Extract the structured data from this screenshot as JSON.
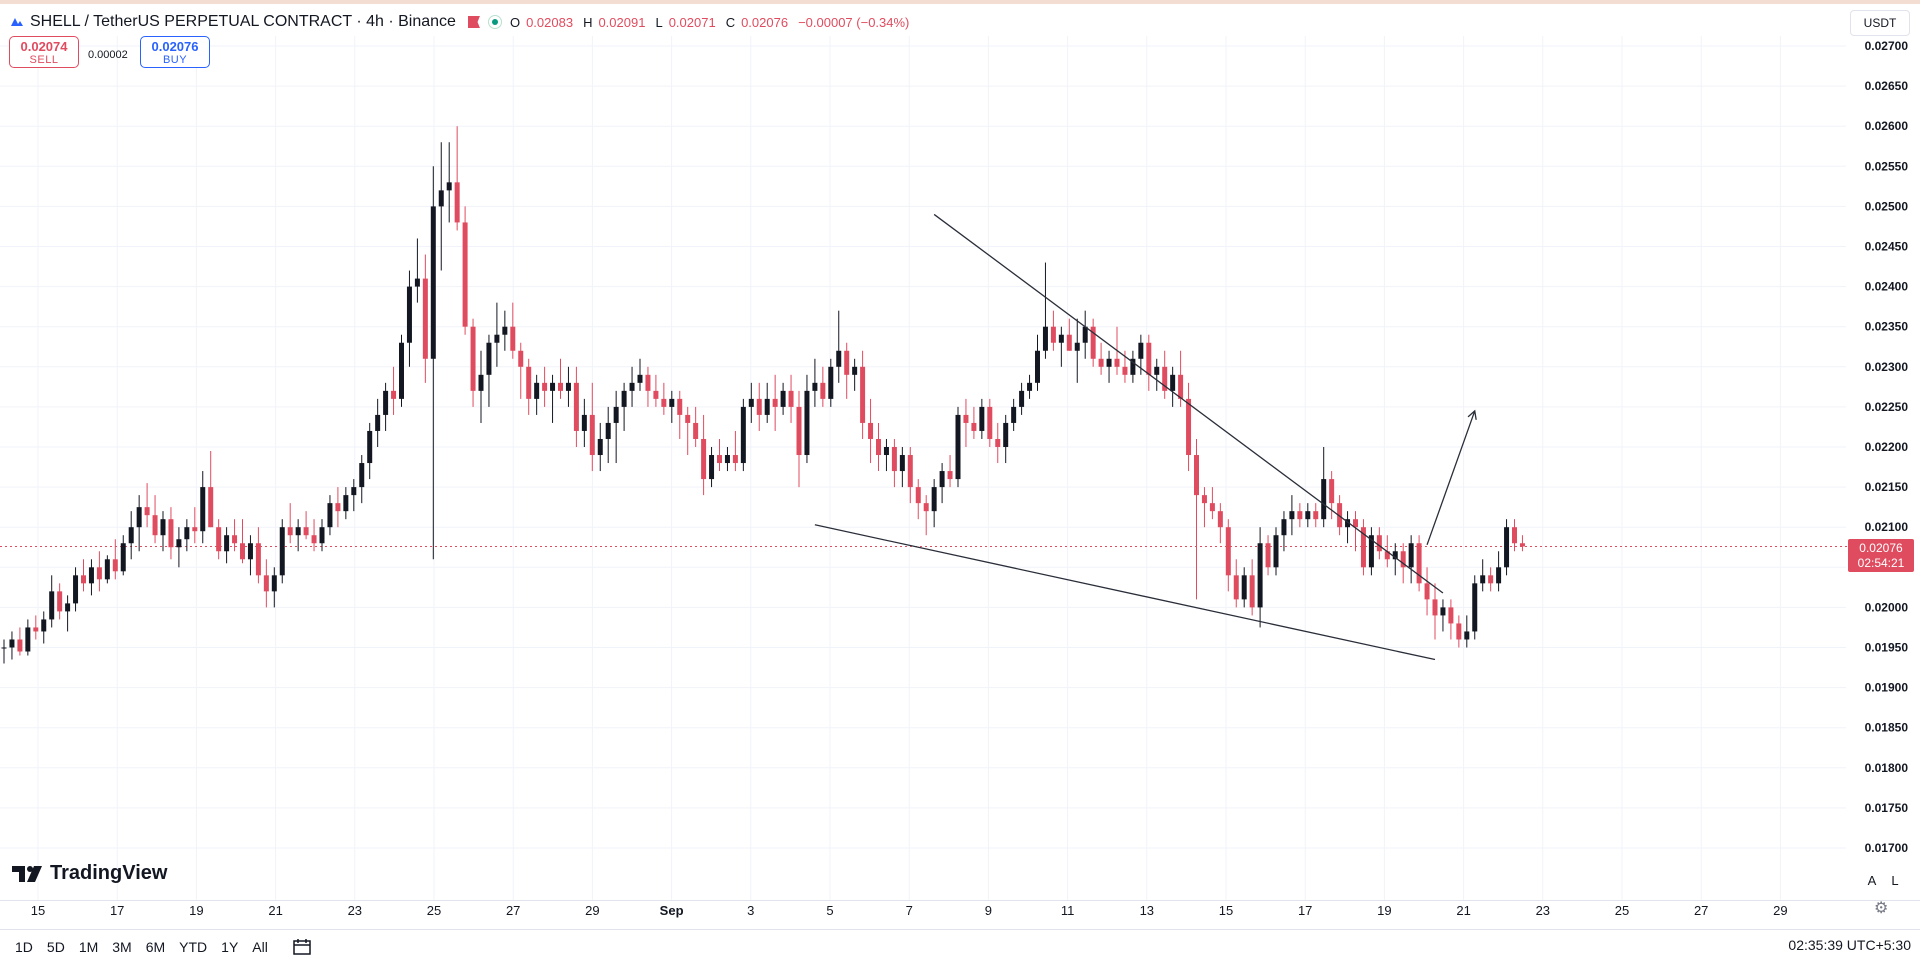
{
  "header": {
    "symbol_title": "SHELL / TetherUS PERPETUAL CONTRACT · 4h · Binance",
    "o_label": "O",
    "o_value": "0.02083",
    "h_label": "H",
    "h_value": "0.02091",
    "l_label": "L",
    "l_value": "0.02071",
    "c_label": "C",
    "c_value": "0.02076",
    "change": "−0.00007 (−0.34%)"
  },
  "trade": {
    "sell_price": "0.02074",
    "sell_label": "SELL",
    "buy_price": "0.02076",
    "buy_label": "BUY",
    "spread": "0.00002"
  },
  "currency": "USDT",
  "last_price": {
    "price": "0.02076",
    "countdown": "02:54:21"
  },
  "logo_text": "TradingView",
  "scale_buttons": {
    "auto": "A",
    "log": "L"
  },
  "range_buttons": [
    "1D",
    "5D",
    "1M",
    "3M",
    "6M",
    "YTD",
    "1Y",
    "All"
  ],
  "clock": "02:35:39 UTC+5:30",
  "icons": {
    "calendar": "calendar-range-icon",
    "settings": "gear-icon",
    "flag": "flag-icon",
    "status": "market-open-dot-icon"
  },
  "colors": {
    "up": "#131722",
    "down": "#e04c5f",
    "grid": "#f0f3fa",
    "trendline": "#2a2e39",
    "price_line": "#e04c5f"
  },
  "chart_data": {
    "type": "candlestick",
    "timeframe": "4h",
    "ylim": [
      0.0169,
      0.0271
    ],
    "y_ticks": [
      "0.01700",
      "0.01750",
      "0.01800",
      "0.01850",
      "0.01900",
      "0.01950",
      "0.02000",
      "0.02050",
      "0.02100",
      "0.02150",
      "0.02200",
      "0.02250",
      "0.02300",
      "0.02350",
      "0.02400",
      "0.02450",
      "0.02500",
      "0.02550",
      "0.02600",
      "0.02650",
      "0.02700"
    ],
    "x_ticks": [
      "15",
      "17",
      "19",
      "21",
      "23",
      "25",
      "27",
      "29",
      "Sep",
      "3",
      "5",
      "7",
      "9",
      "11",
      "13",
      "15",
      "17",
      "19",
      "21",
      "23",
      "25",
      "27",
      "29"
    ],
    "current_price": 0.02076,
    "candles": [
      [
        0.0195,
        0.0196,
        0.0193,
        0.0195
      ],
      [
        0.0195,
        0.0197,
        0.01935,
        0.0196
      ],
      [
        0.0196,
        0.01975,
        0.0194,
        0.01945
      ],
      [
        0.01945,
        0.01985,
        0.0194,
        0.01975
      ],
      [
        0.01975,
        0.0199,
        0.0196,
        0.0197
      ],
      [
        0.0197,
        0.01995,
        0.01955,
        0.01985
      ],
      [
        0.01985,
        0.0204,
        0.01975,
        0.0202
      ],
      [
        0.0202,
        0.0203,
        0.01985,
        0.01995
      ],
      [
        0.01995,
        0.02015,
        0.0197,
        0.02005
      ],
      [
        0.02005,
        0.0205,
        0.01995,
        0.0204
      ],
      [
        0.0204,
        0.0206,
        0.0202,
        0.0203
      ],
      [
        0.0203,
        0.0206,
        0.02015,
        0.0205
      ],
      [
        0.0205,
        0.0207,
        0.0202,
        0.02035
      ],
      [
        0.02035,
        0.02065,
        0.0203,
        0.0206
      ],
      [
        0.0206,
        0.02085,
        0.02035,
        0.02045
      ],
      [
        0.02045,
        0.0209,
        0.0204,
        0.0208
      ],
      [
        0.0208,
        0.0212,
        0.0206,
        0.021
      ],
      [
        0.021,
        0.0214,
        0.0207,
        0.02125
      ],
      [
        0.02125,
        0.02155,
        0.021,
        0.02115
      ],
      [
        0.02115,
        0.0214,
        0.0208,
        0.0209
      ],
      [
        0.0209,
        0.0212,
        0.0207,
        0.0211
      ],
      [
        0.0211,
        0.02125,
        0.0206,
        0.02075
      ],
      [
        0.02075,
        0.021,
        0.0205,
        0.02085
      ],
      [
        0.02085,
        0.0211,
        0.0207,
        0.021
      ],
      [
        0.021,
        0.02125,
        0.0208,
        0.02095
      ],
      [
        0.02095,
        0.0217,
        0.0208,
        0.0215
      ],
      [
        0.0215,
        0.02195,
        0.021,
        0.021
      ],
      [
        0.021,
        0.0211,
        0.0206,
        0.0207
      ],
      [
        0.0207,
        0.021,
        0.02055,
        0.0209
      ],
      [
        0.0209,
        0.0211,
        0.0207,
        0.0208
      ],
      [
        0.0208,
        0.0211,
        0.02055,
        0.0206
      ],
      [
        0.0206,
        0.0209,
        0.0204,
        0.0208
      ],
      [
        0.0208,
        0.021,
        0.0203,
        0.0204
      ],
      [
        0.0204,
        0.0206,
        0.02,
        0.0202
      ],
      [
        0.0202,
        0.0205,
        0.02,
        0.0204
      ],
      [
        0.0204,
        0.0211,
        0.0203,
        0.021
      ],
      [
        0.021,
        0.0213,
        0.0208,
        0.0209
      ],
      [
        0.0209,
        0.0211,
        0.0207,
        0.021
      ],
      [
        0.021,
        0.0212,
        0.02085,
        0.0209
      ],
      [
        0.0209,
        0.0211,
        0.0207,
        0.0208
      ],
      [
        0.0208,
        0.0211,
        0.0207,
        0.021
      ],
      [
        0.021,
        0.0214,
        0.0209,
        0.0213
      ],
      [
        0.0213,
        0.0215,
        0.021,
        0.0212
      ],
      [
        0.0212,
        0.0215,
        0.0211,
        0.0214
      ],
      [
        0.0214,
        0.0216,
        0.0212,
        0.0215
      ],
      [
        0.0215,
        0.0219,
        0.0213,
        0.0218
      ],
      [
        0.0218,
        0.0223,
        0.0216,
        0.0222
      ],
      [
        0.0222,
        0.0226,
        0.022,
        0.0224
      ],
      [
        0.0224,
        0.0228,
        0.0222,
        0.0227
      ],
      [
        0.0227,
        0.023,
        0.0224,
        0.0226
      ],
      [
        0.0226,
        0.0234,
        0.0225,
        0.0233
      ],
      [
        0.0233,
        0.0242,
        0.023,
        0.024
      ],
      [
        0.024,
        0.0246,
        0.0238,
        0.0241
      ],
      [
        0.0241,
        0.0244,
        0.0228,
        0.0231
      ],
      [
        0.0231,
        0.0255,
        0.0206,
        0.025
      ],
      [
        0.025,
        0.0258,
        0.0242,
        0.0252
      ],
      [
        0.0252,
        0.0258,
        0.0248,
        0.0253
      ],
      [
        0.0253,
        0.026,
        0.0247,
        0.0248
      ],
      [
        0.0248,
        0.025,
        0.0234,
        0.0235
      ],
      [
        0.0235,
        0.0236,
        0.0225,
        0.0227
      ],
      [
        0.0227,
        0.0232,
        0.0223,
        0.0229
      ],
      [
        0.0229,
        0.0234,
        0.0225,
        0.0233
      ],
      [
        0.0233,
        0.0238,
        0.023,
        0.0234
      ],
      [
        0.0234,
        0.0237,
        0.0232,
        0.0235
      ],
      [
        0.0235,
        0.0238,
        0.0231,
        0.0232
      ],
      [
        0.0232,
        0.0233,
        0.0226,
        0.023
      ],
      [
        0.023,
        0.0231,
        0.0224,
        0.0226
      ],
      [
        0.0226,
        0.0229,
        0.0224,
        0.0228
      ],
      [
        0.0228,
        0.023,
        0.0225,
        0.0227
      ],
      [
        0.0227,
        0.0229,
        0.0223,
        0.0228
      ],
      [
        0.0228,
        0.0231,
        0.0226,
        0.0227
      ],
      [
        0.0227,
        0.023,
        0.0225,
        0.0228
      ],
      [
        0.0228,
        0.023,
        0.022,
        0.0222
      ],
      [
        0.0222,
        0.0226,
        0.022,
        0.0224
      ],
      [
        0.0224,
        0.0228,
        0.0217,
        0.0219
      ],
      [
        0.0219,
        0.0223,
        0.0217,
        0.0221
      ],
      [
        0.0221,
        0.0225,
        0.0218,
        0.0223
      ],
      [
        0.0223,
        0.0227,
        0.0218,
        0.0225
      ],
      [
        0.0225,
        0.0228,
        0.0222,
        0.0227
      ],
      [
        0.0227,
        0.023,
        0.0225,
        0.0228
      ],
      [
        0.0228,
        0.0231,
        0.0227,
        0.0229
      ],
      [
        0.0229,
        0.023,
        0.0225,
        0.0227
      ],
      [
        0.0227,
        0.0229,
        0.0225,
        0.0226
      ],
      [
        0.0226,
        0.0228,
        0.0224,
        0.0225
      ],
      [
        0.0225,
        0.0227,
        0.0223,
        0.0226
      ],
      [
        0.0226,
        0.0227,
        0.0221,
        0.0224
      ],
      [
        0.0224,
        0.0225,
        0.0219,
        0.0223
      ],
      [
        0.0223,
        0.0225,
        0.022,
        0.0221
      ],
      [
        0.0221,
        0.0224,
        0.0214,
        0.0216
      ],
      [
        0.0216,
        0.022,
        0.0215,
        0.0219
      ],
      [
        0.0219,
        0.0221,
        0.0217,
        0.0218
      ],
      [
        0.0218,
        0.022,
        0.0217,
        0.0219
      ],
      [
        0.0219,
        0.0222,
        0.0217,
        0.0218
      ],
      [
        0.0218,
        0.0226,
        0.0217,
        0.0225
      ],
      [
        0.0225,
        0.0228,
        0.0223,
        0.0226
      ],
      [
        0.0226,
        0.0228,
        0.0222,
        0.0224
      ],
      [
        0.0224,
        0.0228,
        0.0223,
        0.0226
      ],
      [
        0.0226,
        0.0229,
        0.0222,
        0.0225
      ],
      [
        0.0225,
        0.0228,
        0.0224,
        0.0227
      ],
      [
        0.0227,
        0.0229,
        0.0223,
        0.0225
      ],
      [
        0.0225,
        0.0227,
        0.0215,
        0.0219
      ],
      [
        0.0219,
        0.0229,
        0.0218,
        0.0227
      ],
      [
        0.0227,
        0.0231,
        0.0225,
        0.0228
      ],
      [
        0.0228,
        0.023,
        0.0225,
        0.0226
      ],
      [
        0.0226,
        0.0231,
        0.0225,
        0.023
      ],
      [
        0.023,
        0.0237,
        0.0228,
        0.0232
      ],
      [
        0.0232,
        0.0233,
        0.0226,
        0.0229
      ],
      [
        0.0229,
        0.0231,
        0.0227,
        0.023
      ],
      [
        0.023,
        0.0232,
        0.0221,
        0.0223
      ],
      [
        0.0223,
        0.0226,
        0.0218,
        0.0221
      ],
      [
        0.0221,
        0.0223,
        0.0217,
        0.0219
      ],
      [
        0.0219,
        0.0221,
        0.0217,
        0.022
      ],
      [
        0.022,
        0.0221,
        0.0215,
        0.0217
      ],
      [
        0.0217,
        0.022,
        0.0215,
        0.0219
      ],
      [
        0.0219,
        0.022,
        0.0213,
        0.0215
      ],
      [
        0.0215,
        0.0216,
        0.0211,
        0.0213
      ],
      [
        0.0213,
        0.0214,
        0.0209,
        0.0212
      ],
      [
        0.0212,
        0.0216,
        0.021,
        0.0215
      ],
      [
        0.0215,
        0.0218,
        0.0213,
        0.0217
      ],
      [
        0.0217,
        0.0219,
        0.0215,
        0.0216
      ],
      [
        0.0216,
        0.0225,
        0.0215,
        0.0224
      ],
      [
        0.0224,
        0.0226,
        0.022,
        0.0223
      ],
      [
        0.0223,
        0.0225,
        0.0221,
        0.0222
      ],
      [
        0.0222,
        0.0226,
        0.0221,
        0.0225
      ],
      [
        0.0225,
        0.0226,
        0.022,
        0.0221
      ],
      [
        0.0221,
        0.0223,
        0.0218,
        0.022
      ],
      [
        0.022,
        0.0224,
        0.0218,
        0.0223
      ],
      [
        0.0223,
        0.0226,
        0.0222,
        0.0225
      ],
      [
        0.0225,
        0.0228,
        0.0224,
        0.0227
      ],
      [
        0.0227,
        0.0229,
        0.0226,
        0.0228
      ],
      [
        0.0228,
        0.0234,
        0.0227,
        0.0232
      ],
      [
        0.0232,
        0.0243,
        0.0231,
        0.0235
      ],
      [
        0.0235,
        0.0237,
        0.0232,
        0.0233
      ],
      [
        0.0233,
        0.0235,
        0.023,
        0.0234
      ],
      [
        0.0234,
        0.0236,
        0.0232,
        0.0232
      ],
      [
        0.0232,
        0.0236,
        0.0228,
        0.0233
      ],
      [
        0.0233,
        0.0237,
        0.0231,
        0.0235
      ],
      [
        0.0235,
        0.0236,
        0.023,
        0.0231
      ],
      [
        0.0231,
        0.0233,
        0.0229,
        0.023
      ],
      [
        0.023,
        0.0232,
        0.0228,
        0.0231
      ],
      [
        0.0231,
        0.0235,
        0.0229,
        0.023
      ],
      [
        0.023,
        0.0232,
        0.0228,
        0.0229
      ],
      [
        0.0229,
        0.0232,
        0.0228,
        0.0231
      ],
      [
        0.0231,
        0.0234,
        0.0229,
        0.0233
      ],
      [
        0.0233,
        0.0234,
        0.0227,
        0.0229
      ],
      [
        0.0229,
        0.0231,
        0.0227,
        0.023
      ],
      [
        0.023,
        0.0232,
        0.0226,
        0.0227
      ],
      [
        0.0227,
        0.023,
        0.0225,
        0.0229
      ],
      [
        0.0229,
        0.0232,
        0.0225,
        0.0226
      ],
      [
        0.0226,
        0.0228,
        0.0217,
        0.0219
      ],
      [
        0.0219,
        0.0221,
        0.0201,
        0.0214
      ],
      [
        0.0214,
        0.0215,
        0.021,
        0.0213
      ],
      [
        0.0213,
        0.0215,
        0.0211,
        0.0212
      ],
      [
        0.0212,
        0.0213,
        0.0208,
        0.021
      ],
      [
        0.021,
        0.0211,
        0.0202,
        0.0204
      ],
      [
        0.0204,
        0.0206,
        0.02,
        0.0201
      ],
      [
        0.0201,
        0.0205,
        0.02,
        0.0204
      ],
      [
        0.0204,
        0.0206,
        0.0199,
        0.02
      ],
      [
        0.02,
        0.021,
        0.01975,
        0.0208
      ],
      [
        0.0208,
        0.0209,
        0.0204,
        0.0205
      ],
      [
        0.0205,
        0.021,
        0.0204,
        0.0209
      ],
      [
        0.0209,
        0.0212,
        0.0207,
        0.0211
      ],
      [
        0.0211,
        0.0214,
        0.0209,
        0.0212
      ],
      [
        0.0212,
        0.0213,
        0.021,
        0.0211
      ],
      [
        0.0211,
        0.0213,
        0.021,
        0.0212
      ],
      [
        0.0212,
        0.0213,
        0.021,
        0.0211
      ],
      [
        0.0211,
        0.022,
        0.021,
        0.0216
      ],
      [
        0.0216,
        0.0217,
        0.0211,
        0.0213
      ],
      [
        0.0213,
        0.0214,
        0.0209,
        0.021
      ],
      [
        0.021,
        0.0212,
        0.0208,
        0.0211
      ],
      [
        0.0211,
        0.0212,
        0.0207,
        0.021
      ],
      [
        0.021,
        0.0211,
        0.0204,
        0.0205
      ],
      [
        0.0205,
        0.021,
        0.0204,
        0.0209
      ],
      [
        0.0209,
        0.021,
        0.0206,
        0.0207
      ],
      [
        0.0207,
        0.0209,
        0.0205,
        0.0206
      ],
      [
        0.0206,
        0.0208,
        0.0204,
        0.0207
      ],
      [
        0.0207,
        0.0208,
        0.0203,
        0.0205
      ],
      [
        0.0205,
        0.0209,
        0.0203,
        0.0208
      ],
      [
        0.0208,
        0.0209,
        0.0202,
        0.0203
      ],
      [
        0.0203,
        0.0205,
        0.0199,
        0.0201
      ],
      [
        0.0201,
        0.0203,
        0.0196,
        0.0199
      ],
      [
        0.0199,
        0.0201,
        0.0197,
        0.02
      ],
      [
        0.02,
        0.0201,
        0.0196,
        0.0198
      ],
      [
        0.0198,
        0.0199,
        0.0195,
        0.0196
      ],
      [
        0.0196,
        0.0199,
        0.0195,
        0.0197
      ],
      [
        0.0197,
        0.0204,
        0.0196,
        0.0203
      ],
      [
        0.0203,
        0.0206,
        0.0202,
        0.0204
      ],
      [
        0.0204,
        0.0205,
        0.0202,
        0.0203
      ],
      [
        0.0203,
        0.0207,
        0.0202,
        0.0205
      ],
      [
        0.0205,
        0.0211,
        0.0204,
        0.021
      ],
      [
        0.021,
        0.0211,
        0.0207,
        0.0208
      ],
      [
        0.0208,
        0.0209,
        0.0207,
        0.02076
      ]
    ],
    "trendlines": [
      {
        "from": {
          "index": 117,
          "price": 0.0249
        },
        "to": {
          "index": 181,
          "price": 0.02018
        }
      },
      {
        "from": {
          "index": 102,
          "price": 0.02103
        },
        "to": {
          "index": 180,
          "price": 0.01935
        }
      }
    ],
    "projection_arrow": {
      "from": {
        "index": 179,
        "price": 0.02078
      },
      "to": {
        "index": 185,
        "price": 0.02245
      }
    }
  }
}
